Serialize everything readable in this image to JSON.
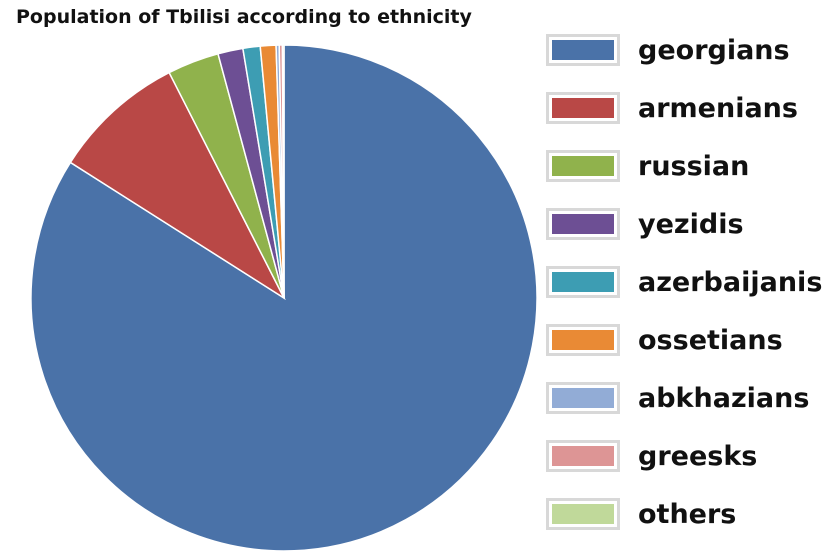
{
  "chart_data": {
    "type": "pie",
    "title": "Population of Tbilisi according to ethnicity",
    "categories": [
      "georgians",
      "armenians",
      "russian",
      "yezidis",
      "azerbaijanis",
      "ossetians",
      "abkhazians",
      "greesks",
      "others"
    ],
    "values": [
      84.0,
      8.5,
      3.3,
      1.6,
      1.1,
      1.0,
      0.2,
      0.2,
      0.1
    ],
    "colors": [
      "#4a72a8",
      "#b94846",
      "#90b24c",
      "#6d4f94",
      "#3d9db3",
      "#e98a35",
      "#92acd6",
      "#dd9595",
      "#c0d99a"
    ],
    "legend_position": "right"
  }
}
